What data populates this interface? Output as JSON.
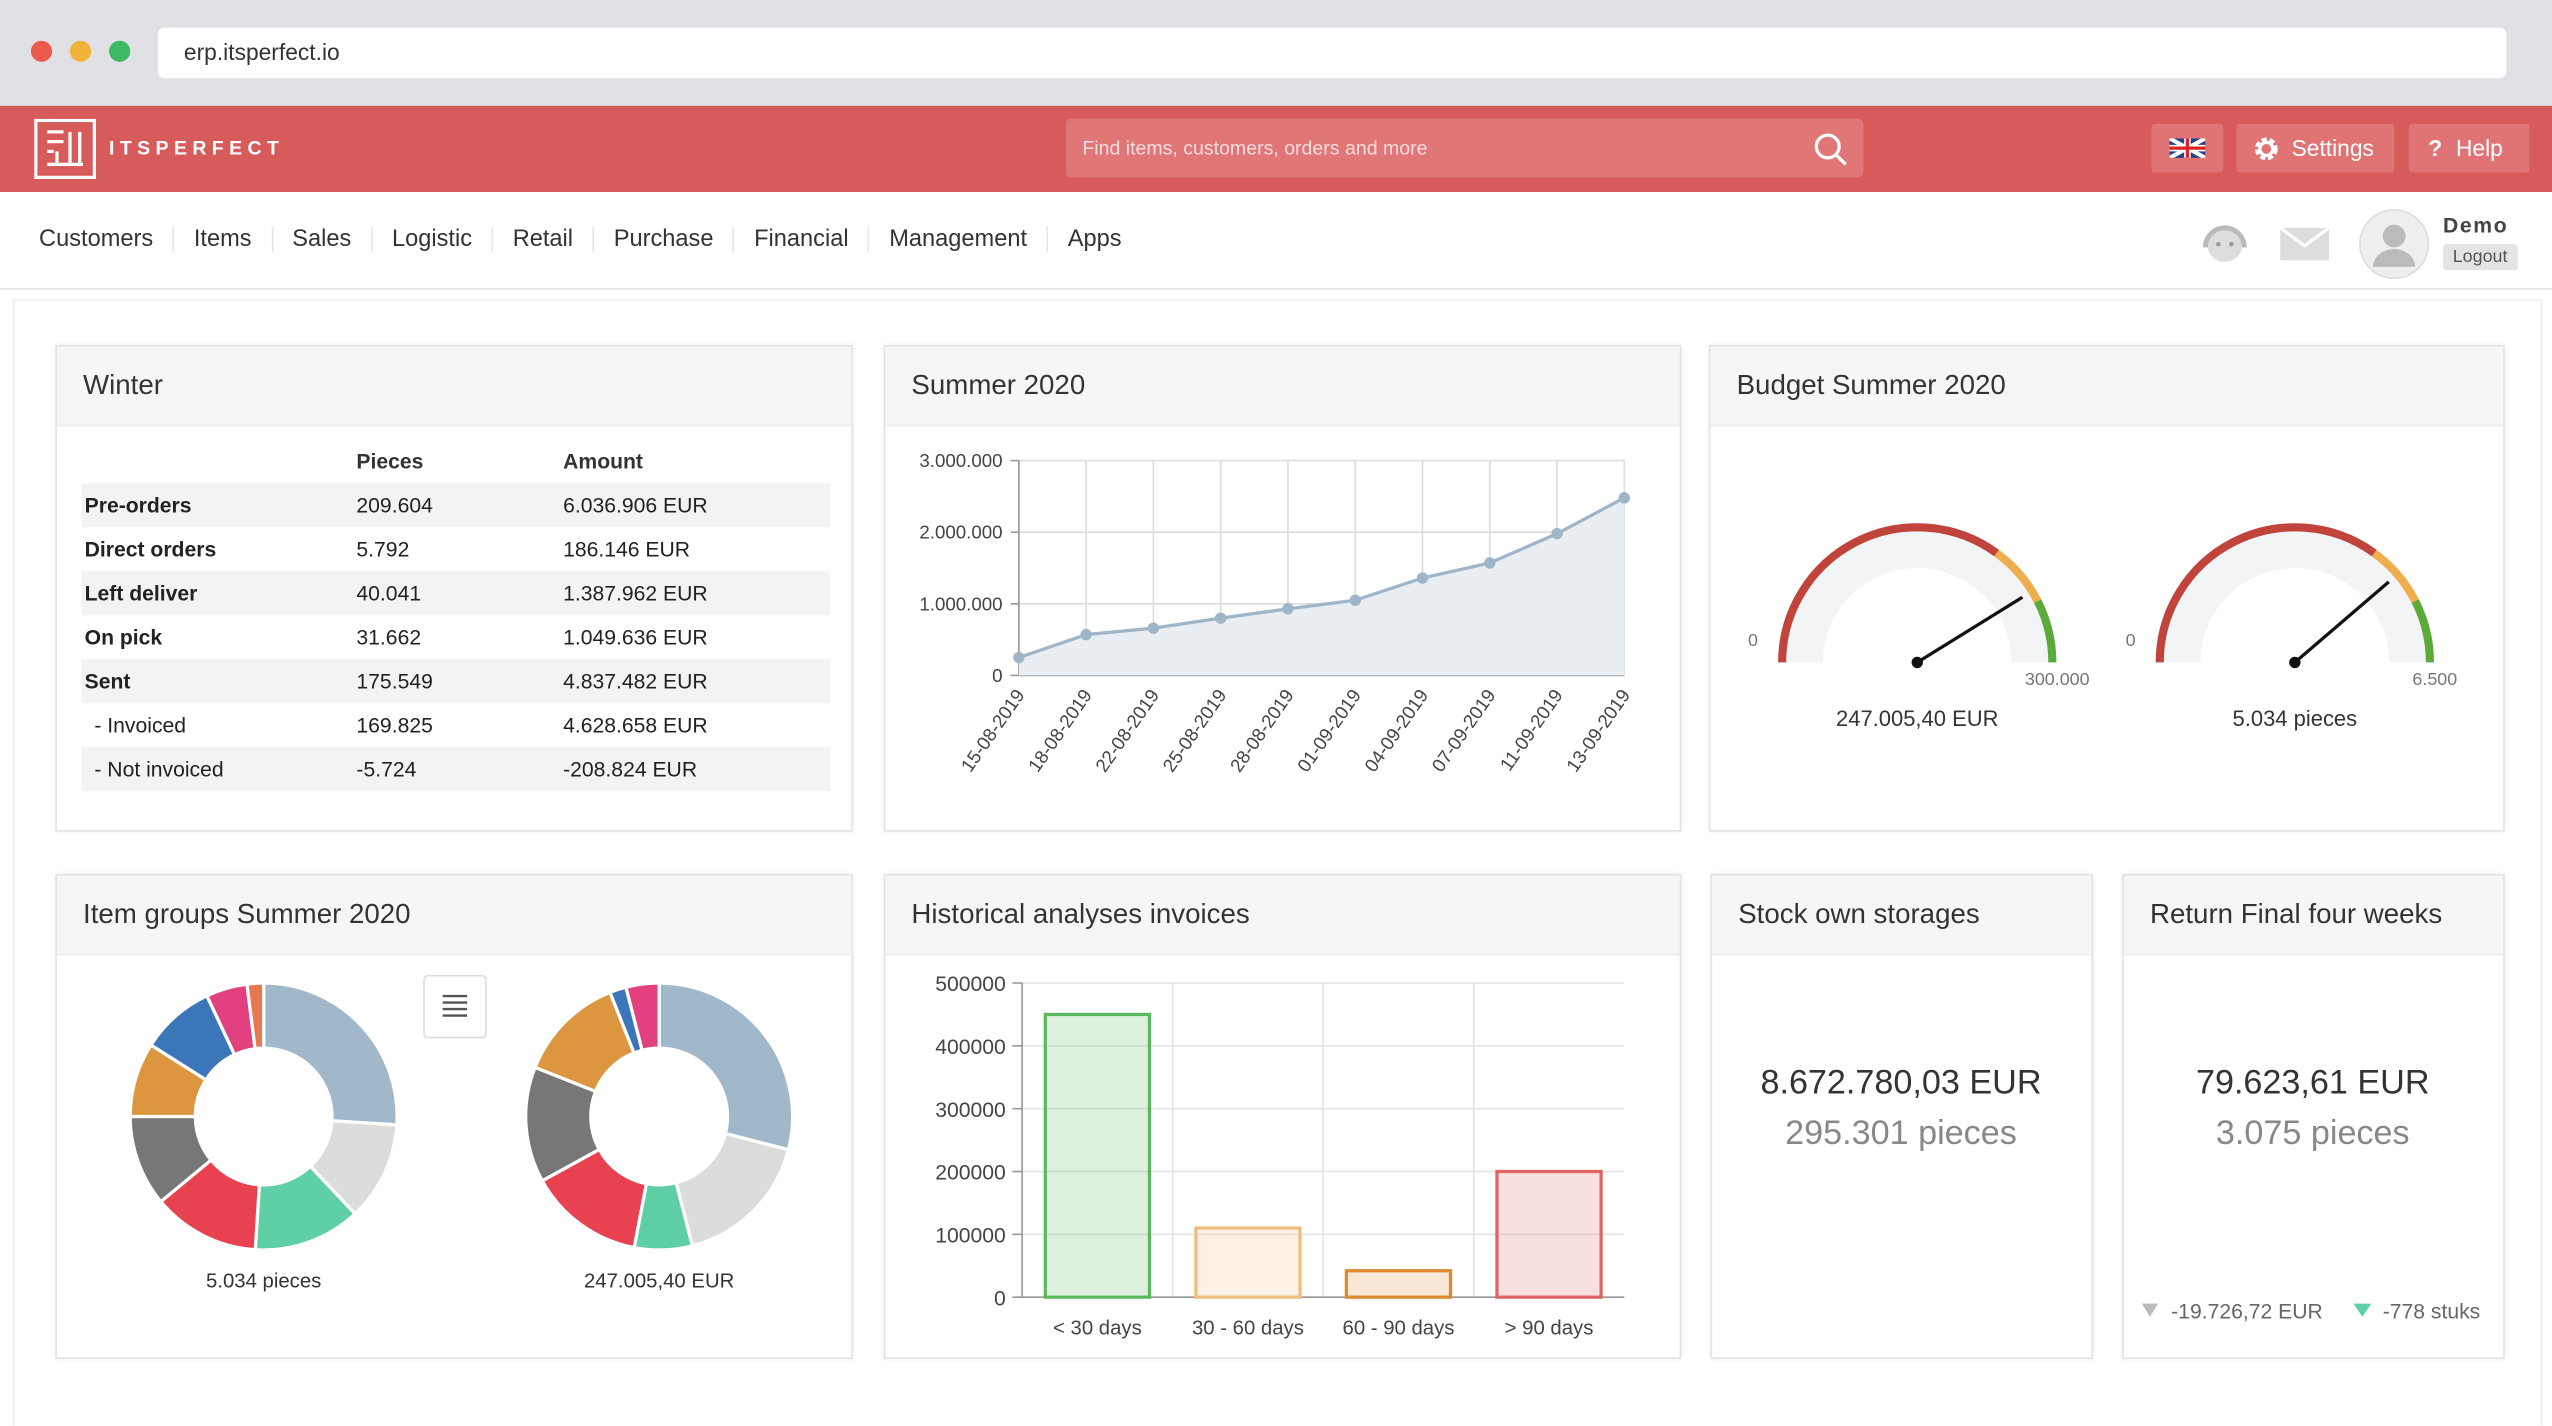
{
  "browser": {
    "url": "erp.itsperfect.io"
  },
  "header": {
    "brand": "ITSPERFECT",
    "search_placeholder": "Find items, customers, orders and more",
    "settings": "Settings",
    "help": "Help"
  },
  "nav": [
    "Customers",
    "Items",
    "Sales",
    "Logistic",
    "Retail",
    "Purchase",
    "Financial",
    "Management",
    "Apps"
  ],
  "user": {
    "name": "Demo",
    "logout": "Logout"
  },
  "winter": {
    "title": "Winter",
    "columns": [
      "Pieces",
      "Amount"
    ],
    "rows": [
      [
        "Pre-orders",
        "209.604",
        "6.036.906  EUR"
      ],
      [
        "Direct orders",
        "5.792",
        "186.146  EUR"
      ],
      [
        "Left deliver",
        "40.041",
        "1.387.962  EUR"
      ],
      [
        "On pick",
        "31.662",
        "1.049.636  EUR"
      ],
      [
        "Sent",
        "175.549",
        "4.837.482  EUR"
      ],
      [
        "- Invoiced",
        "169.825",
        "4.628.658  EUR"
      ],
      [
        "- Not invoiced",
        "-5.724",
        "-208.824  EUR"
      ]
    ]
  },
  "summer": {
    "title": "Summer 2020",
    "type": "line",
    "color": "#9fb5c8",
    "x": [
      "15-08-2019",
      "18-08-2019",
      "22-08-2019",
      "25-08-2019",
      "28-08-2019",
      "01-09-2019",
      "04-09-2019",
      "07-09-2019",
      "11-09-2019",
      "13-09-2019"
    ],
    "values": [
      250000,
      570000,
      660000,
      800000,
      930000,
      1050000,
      1360000,
      1570000,
      1980000,
      2480000
    ],
    "ylim": [
      0,
      3000000
    ],
    "yticks": [
      0,
      {
        "value": 1000000,
        "label": "1.000.000"
      },
      {
        "value": 2000000,
        "label": "2.000.000"
      },
      {
        "value": 3000000,
        "label": "3.000.000"
      }
    ],
    "grid": true
  },
  "budget": {
    "title": "Budget Summer 2020",
    "gauges": [
      {
        "value": 247005.4,
        "value_label": "247.005,40 EUR",
        "lim": [
          0,
          300000
        ],
        "ticks": [
          0,
          {
            "value": 300000,
            "label": "300.000"
          }
        ]
      },
      {
        "value": 5034,
        "value_label": "5.034 pieces",
        "lim": [
          0,
          6500
        ],
        "ticks": [
          0,
          {
            "value": 6500,
            "label": "6.500"
          }
        ]
      }
    ]
  },
  "item_groups": {
    "title": "Item groups Summer 2020",
    "type": "pie",
    "donuts": [
      {
        "label": "5.034 pieces",
        "values": [
          26,
          12,
          13,
          13,
          11,
          9,
          9,
          5,
          2
        ],
        "colors": [
          "#a0b8c9",
          "#dcdcdc",
          "#5fd0a5",
          "#e8414f",
          "#777777",
          "#dd9640",
          "#3a76b8",
          "#e2407f",
          "#e8784e"
        ]
      },
      {
        "label": "247.005,40 EUR",
        "values": [
          29,
          17,
          7,
          14,
          14,
          13,
          2,
          4
        ],
        "colors": [
          "#a0b8c9",
          "#dcdcdc",
          "#5fd0a5",
          "#e8414f",
          "#777777",
          "#dd9640",
          "#3a76b8",
          "#e2407f"
        ]
      }
    ]
  },
  "historical": {
    "title": "Historical analyses invoices",
    "type": "bar",
    "categories": [
      "< 30 days",
      "30 - 60 days",
      "60 - 90 days",
      "> 90 days"
    ],
    "values": [
      450000,
      110000,
      42000,
      200000
    ],
    "colors": [
      "#5cb85c",
      "#ecc07c",
      "#de8a2e",
      "#e06464"
    ],
    "ylim": [
      0,
      500000
    ],
    "yticks": [
      0,
      100000,
      200000,
      300000,
      400000,
      500000
    ],
    "grid": true
  },
  "stock": {
    "title": "Stock own storages",
    "amount": "8.672.780,03 EUR",
    "pieces": "295.301 pieces"
  },
  "return": {
    "title": "Return Final four weeks",
    "amount": "79.623,61 EUR",
    "pieces": "3.075 pieces",
    "delta_amount": "-19.726,72 EUR",
    "delta_pieces": "-778 stuks"
  }
}
